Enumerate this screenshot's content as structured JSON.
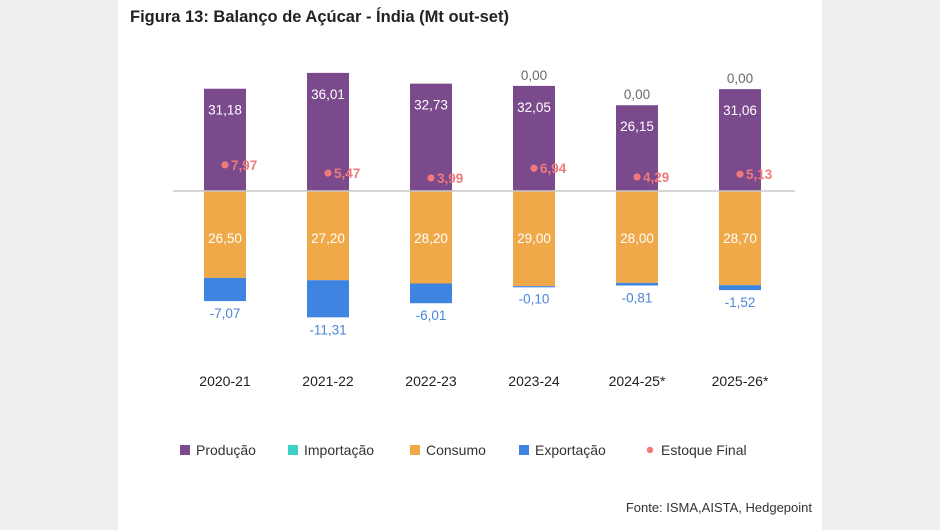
{
  "chart_data": {
    "type": "bar",
    "title": "Figura 13: Balanço de Açúcar - Índia (Mt out-set)",
    "source": "Fonte: ISMA,AISTA, Hedgepoint",
    "categories": [
      "2020-21",
      "2021-22",
      "2022-23",
      "2023-24",
      "2024-25*",
      "2025-26*"
    ],
    "series": [
      {
        "name": "Produção",
        "type": "bar",
        "color": "#7b4a8c",
        "values": [
          31.18,
          36.01,
          32.73,
          32.05,
          26.15,
          31.06
        ],
        "labels": [
          "31,18",
          "36,01",
          "32,73",
          "32,05",
          "26,15",
          "31,06"
        ]
      },
      {
        "name": "Importação",
        "type": "bar",
        "color": "#3fd1c6",
        "values": [
          null,
          null,
          null,
          0.0,
          0.0,
          0.0
        ],
        "labels": [
          "",
          "",
          "",
          "0,00",
          "0,00",
          "0,00"
        ]
      },
      {
        "name": "Consumo",
        "type": "bar",
        "color": "#f0a948",
        "values": [
          -26.5,
          -27.2,
          -28.2,
          -29.0,
          -28.0,
          -28.7
        ],
        "labels": [
          "26,50",
          "27,20",
          "28,20",
          "29,00",
          "28,00",
          "28,70"
        ]
      },
      {
        "name": "Exportação",
        "type": "bar",
        "color": "#3f84e0",
        "values": [
          -7.07,
          -11.31,
          -6.01,
          -0.1,
          -0.81,
          -1.52
        ],
        "labels": [
          "-7,07",
          "-11,31",
          "-6,01",
          "-0,10",
          "-0,81",
          "-1,52"
        ]
      },
      {
        "name": "Estoque Final",
        "type": "scatter",
        "color": "#f07a7a",
        "values": [
          7.97,
          5.47,
          3.99,
          6.94,
          4.29,
          5.13
        ],
        "labels": [
          "7,97",
          "5,47",
          "3,99",
          "6,94",
          "4,29",
          "5,13"
        ]
      }
    ],
    "ylim": [
      -45,
      40
    ],
    "grid": false,
    "legend_position": "bottom"
  }
}
